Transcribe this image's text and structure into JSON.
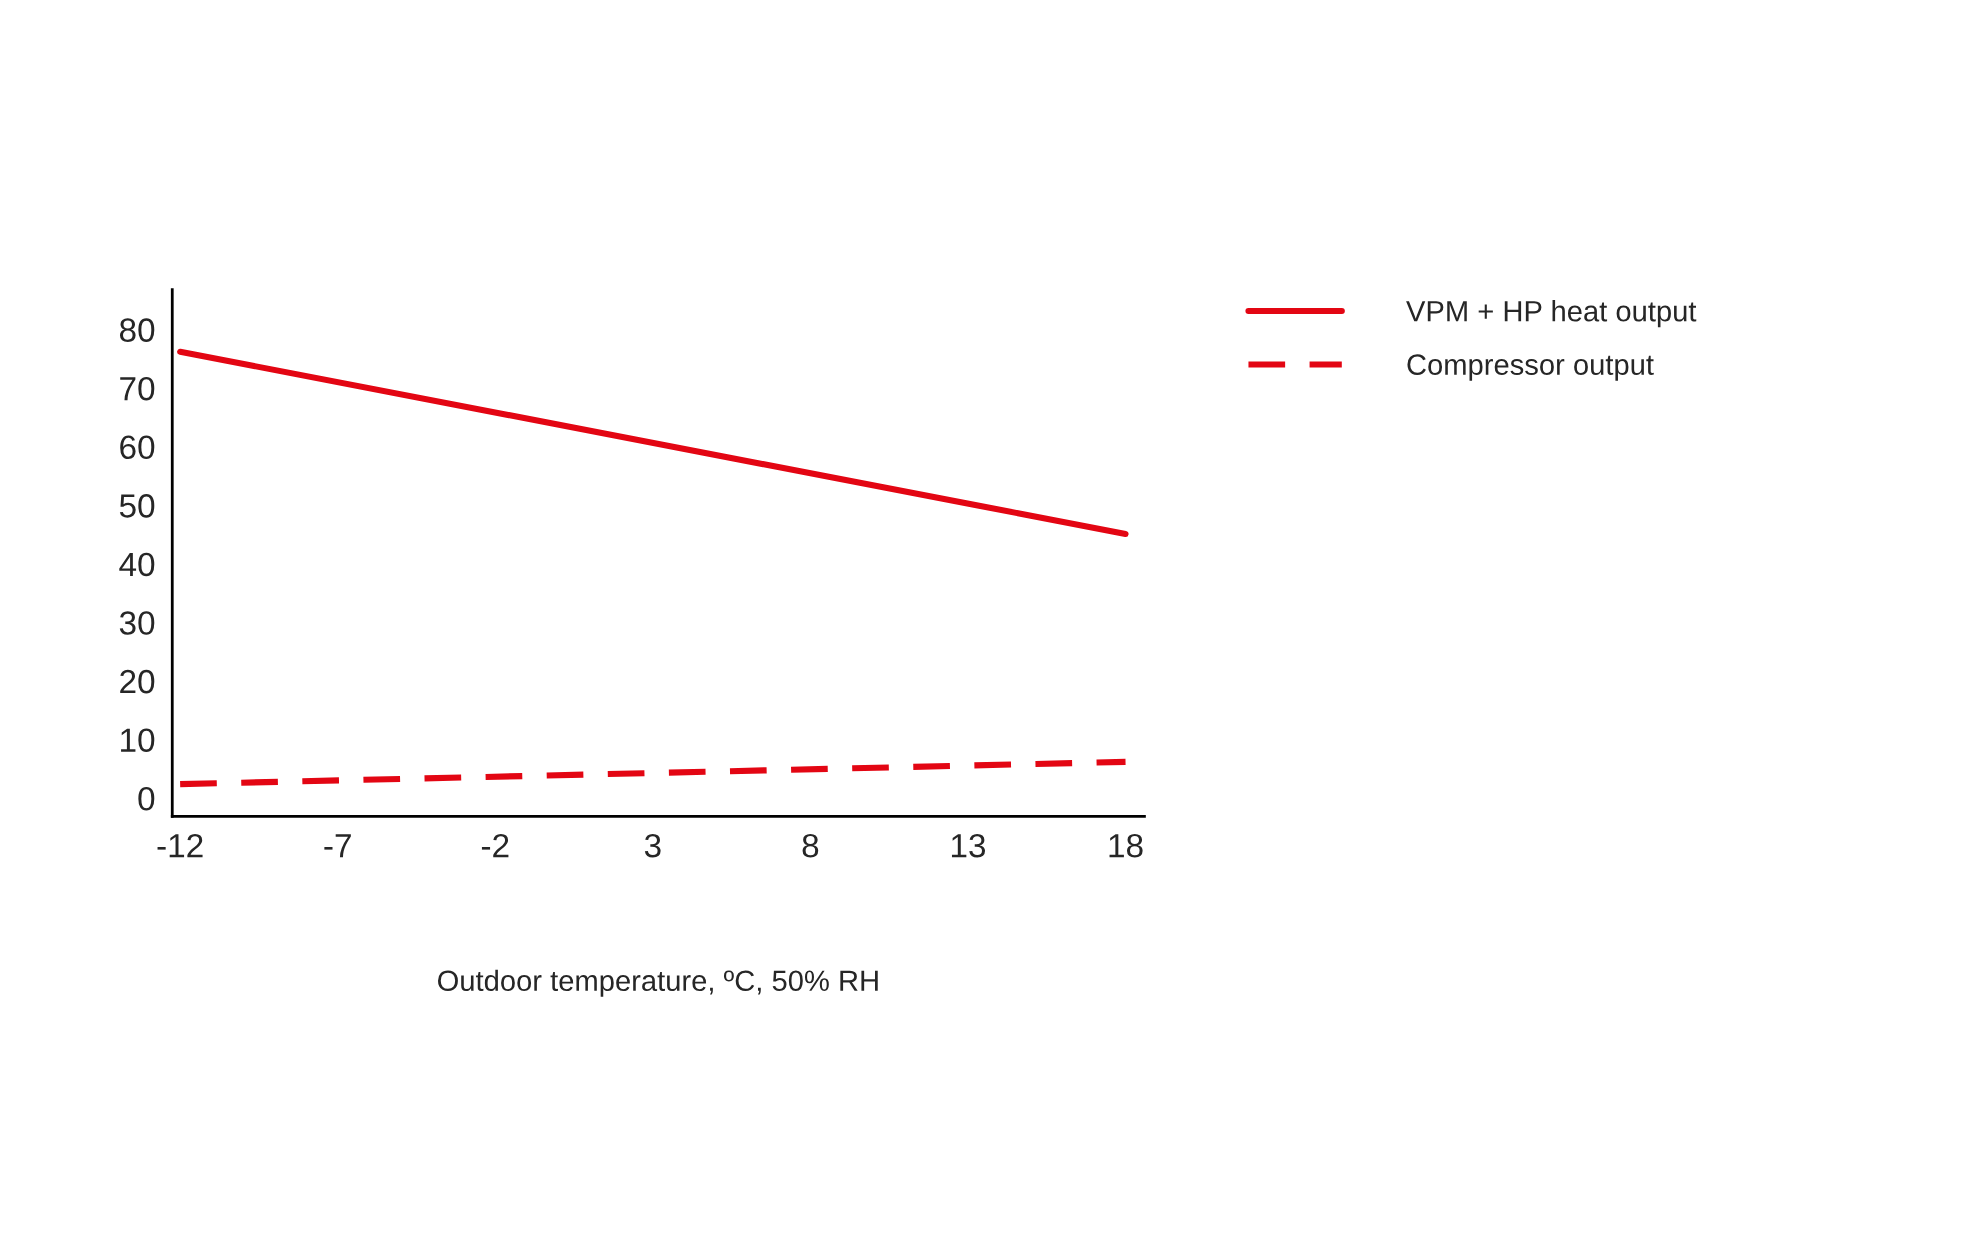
{
  "chart_data": {
    "type": "line",
    "xlabel": "Outdoor temperature, ºC, 50% RH",
    "x": [
      -12,
      18
    ],
    "series": [
      {
        "name": "VPM + HP heat output",
        "color": "#e30613",
        "values": [
          76.2,
          45.1
        ],
        "line_style": "solid"
      },
      {
        "name": "Compressor output",
        "color": "#e30613",
        "values": [
          2.4,
          6.2
        ],
        "line_style": "dashed"
      }
    ],
    "xlim": [
      -12.25,
      18.6
    ],
    "ylim": [
      -3.1,
      86.8
    ],
    "xticks": [
      -12,
      -7,
      -2,
      3,
      8,
      13,
      18
    ],
    "yticks": [
      0,
      10,
      20,
      30,
      40,
      50,
      60,
      70,
      80
    ],
    "grid": false,
    "legend": "top right",
    "marker": "none"
  }
}
